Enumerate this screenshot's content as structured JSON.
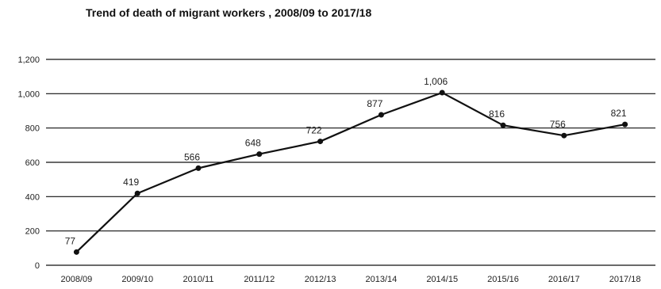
{
  "chart_data": {
    "type": "line",
    "title": "Trend of death of migrant workers , 2008/09 to 2017/18",
    "xlabel": "",
    "ylabel": "",
    "categories": [
      "2008/09",
      "2009/10",
      "2010/11",
      "2011/12",
      "2012/13",
      "2013/14",
      "2014/15",
      "2015/16",
      "2016/17",
      "2017/18"
    ],
    "values": [
      77,
      419,
      566,
      648,
      722,
      877,
      1006,
      816,
      756,
      821
    ],
    "data_labels": [
      "77",
      "419",
      "566",
      "648",
      "722",
      "877",
      "1,006",
      "816",
      "756",
      "821"
    ],
    "y_ticks": [
      0,
      200,
      400,
      600,
      800,
      1000,
      1200
    ],
    "y_tick_labels": [
      "0",
      "200",
      "400",
      "600",
      "800",
      "1,000",
      "1,200"
    ],
    "ylim": [
      0,
      1200
    ],
    "grid": true,
    "legend": "none",
    "colors": {
      "line": "#111111",
      "grid": "#111111",
      "text": "#222222"
    }
  }
}
